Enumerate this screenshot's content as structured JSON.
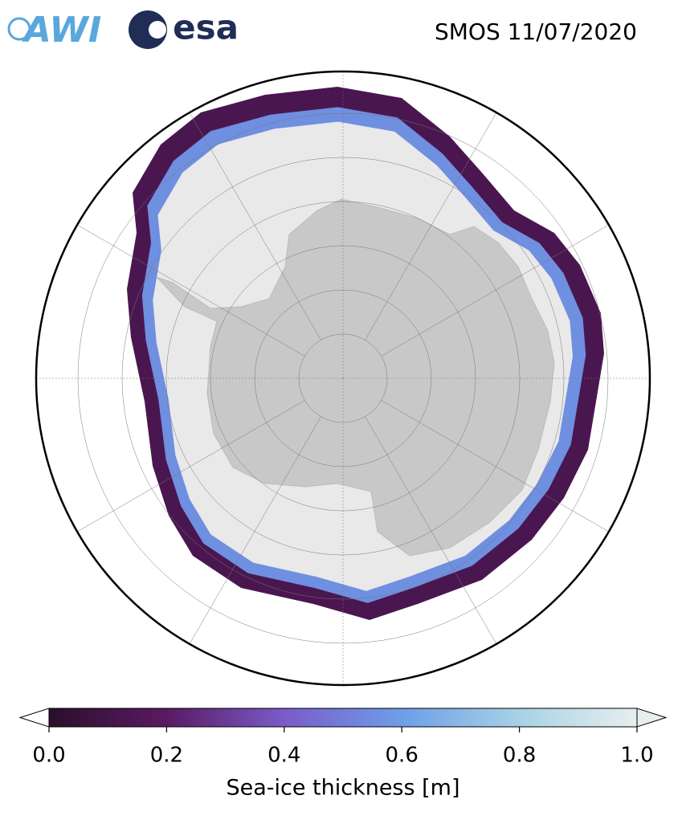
{
  "header": {
    "logos": [
      "AWI",
      "esa"
    ],
    "title": "SMOS 11/07/2020"
  },
  "colorbar": {
    "label": "Sea-ice thickness [m]",
    "lim": [
      0,
      1
    ],
    "ticks": [
      {
        "value": 0,
        "label": "0.0"
      },
      {
        "value": 0.2,
        "label": "0.2"
      },
      {
        "value": 0.4,
        "label": "0.4"
      },
      {
        "value": 0.6,
        "label": "0.6"
      },
      {
        "value": 0.8,
        "label": "0.8"
      },
      {
        "value": 1,
        "label": "1.0"
      }
    ],
    "colors": [
      "#2a0f2c",
      "#5a1a62",
      "#7a5bc9",
      "#6e9ee8",
      "#a7d2e6",
      "#e8eeee"
    ]
  }
}
